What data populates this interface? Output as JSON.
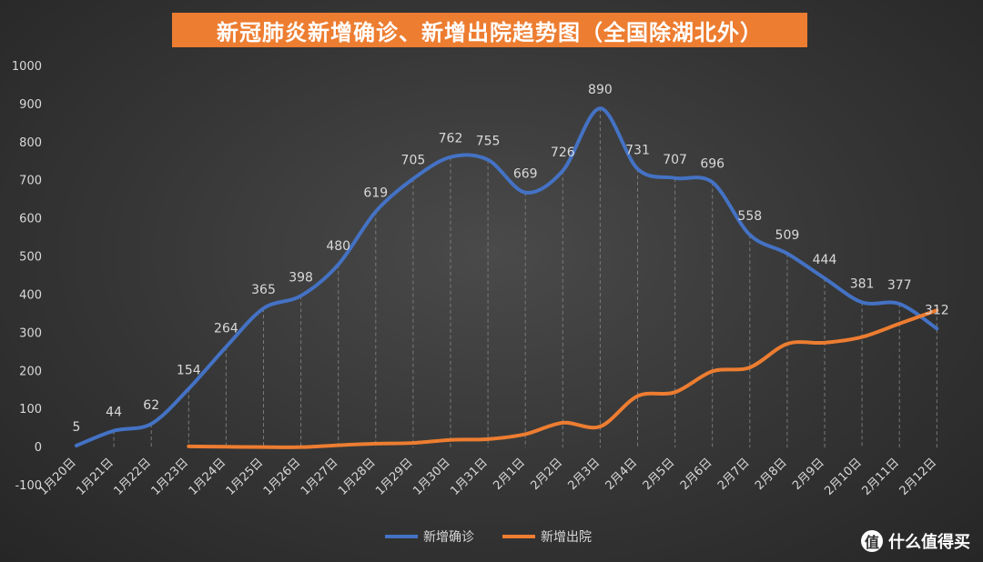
{
  "title": "新冠肺炎新增确诊、新增出院趋势图（全国除湖北外）",
  "watermark": {
    "symbol": "值",
    "text": "什么值得买"
  },
  "colors": {
    "confirmed": "#4472c4",
    "discharged": "#ed7d31",
    "grid": "#7a7a7a",
    "text": "#d9d9d9"
  },
  "chart_data": {
    "type": "line",
    "categories": [
      "1月20日",
      "1月21日",
      "1月22日",
      "1月23日",
      "1月24日",
      "1月25日",
      "1月26日",
      "1月27日",
      "1月28日",
      "1月29日",
      "1月30日",
      "1月31日",
      "2月1日",
      "2月2日",
      "2月3日",
      "2月4日",
      "2月5日",
      "2月6日",
      "2月7日",
      "2月8日",
      "2月9日",
      "2月10日",
      "2月11日",
      "2月12日"
    ],
    "ylim": [
      -100,
      1000
    ],
    "yticks": [
      -100,
      0,
      100,
      200,
      300,
      400,
      500,
      600,
      700,
      800,
      900,
      1000
    ],
    "grid": "vertical dashed drop lines",
    "legend_position": "bottom",
    "series": [
      {
        "name": "新增确诊",
        "values": [
          5,
          44,
          62,
          154,
          264,
          365,
          398,
          480,
          619,
          705,
          762,
          755,
          669,
          726,
          890,
          731,
          707,
          696,
          558,
          509,
          444,
          381,
          377,
          312
        ],
        "labels": [
          "5",
          "44",
          "62",
          "154",
          "264",
          "365",
          "398",
          "480",
          "619",
          "705",
          "762",
          "755",
          "669",
          "726",
          "890",
          "731",
          "707",
          "696",
          "558",
          "509",
          "444",
          "381",
          "377",
          "312"
        ]
      },
      {
        "name": "新增出院",
        "values": [
          null,
          null,
          null,
          3,
          2,
          1,
          1,
          6,
          10,
          12,
          20,
          22,
          35,
          65,
          55,
          135,
          145,
          200,
          210,
          272,
          275,
          290,
          325,
          360
        ]
      }
    ]
  }
}
